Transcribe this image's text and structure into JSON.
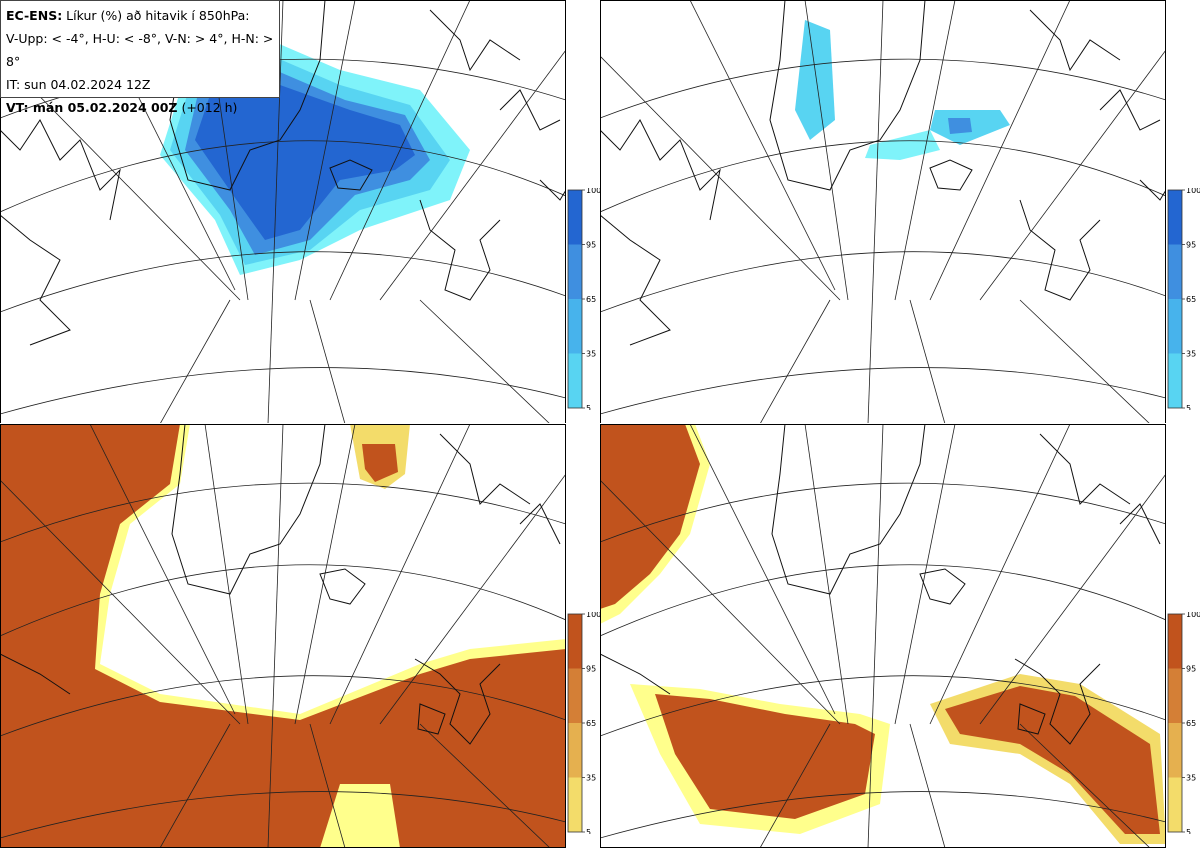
{
  "info": {
    "title_bold": "EC-ENS:",
    "title_rest": " Líkur (%) að hitavik í 850hPa:",
    "line2": "V-Upp: < -4°, H-U: < -8°, V-N: > 4°, H-N: > 8°",
    "line3": "IT: sun 04.02.2024 12Z",
    "line4_bold": "VT: mán 05.02.2024 00Z",
    "line4_rest": " (+012 h)"
  },
  "panels": [
    {
      "id": "top-left",
      "variable": "V-Upp",
      "threshold": "< -4°",
      "palette": "blue"
    },
    {
      "id": "top-right",
      "variable": "H-U",
      "threshold": "< -8°",
      "palette": "blue"
    },
    {
      "id": "bottom-left",
      "variable": "V-N",
      "threshold": "> 4°",
      "palette": "orange"
    },
    {
      "id": "bottom-right",
      "variable": "H-N",
      "threshold": "> 8°",
      "palette": "orange"
    }
  ],
  "colorbars": {
    "blue": {
      "ticks": [
        "100",
        "95",
        "65",
        "35",
        "5"
      ],
      "colors": [
        "#2366d1",
        "#3f8fe0",
        "#47b3ec",
        "#58d4f2",
        "#7ff3fa"
      ]
    },
    "orange": {
      "ticks": [
        "100",
        "95",
        "65",
        "35",
        "5"
      ],
      "colors": [
        "#c1531d",
        "#d47f36",
        "#e5b04f",
        "#f3dc6a",
        "#ffff8c"
      ]
    }
  }
}
